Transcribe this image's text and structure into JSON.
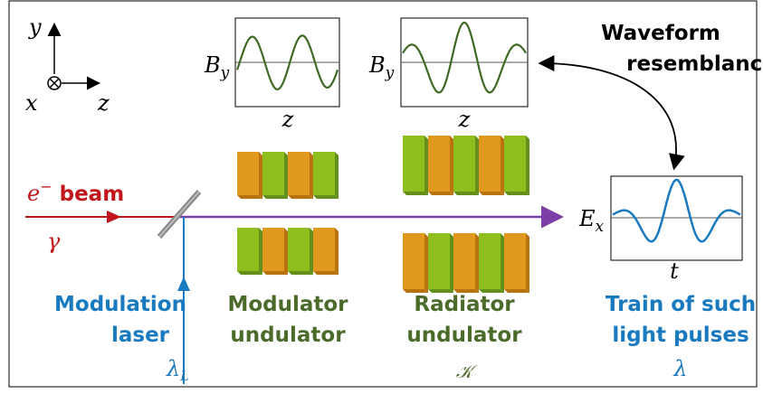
{
  "axes": {
    "y": "y",
    "x": "x",
    "z": "z"
  },
  "plots": [
    {
      "ylabel": {
        "base": "B",
        "sub": "y"
      },
      "xlabel": "z"
    },
    {
      "ylabel": {
        "base": "B",
        "sub": "y"
      },
      "xlabel": "z"
    },
    {
      "ylabel": {
        "base": "E",
        "sub": "x"
      },
      "xlabel": "t"
    }
  ],
  "annotation": [
    "Waveform",
    "resemblance"
  ],
  "beam": {
    "particle": "e",
    "charge": "−",
    "word": "beam",
    "photon": "γ"
  },
  "labels": [
    {
      "lines": [
        "Modulation",
        "laser"
      ],
      "symbol": {
        "base": "λ",
        "sub": "L"
      }
    },
    {
      "lines": [
        "Modulator",
        "undulator"
      ]
    },
    {
      "lines": [
        "Radiator",
        "undulator"
      ],
      "symbol": "𝒦"
    },
    {
      "lines": [
        "Train of such",
        "light pulses"
      ],
      "symbol": "λ"
    }
  ]
}
